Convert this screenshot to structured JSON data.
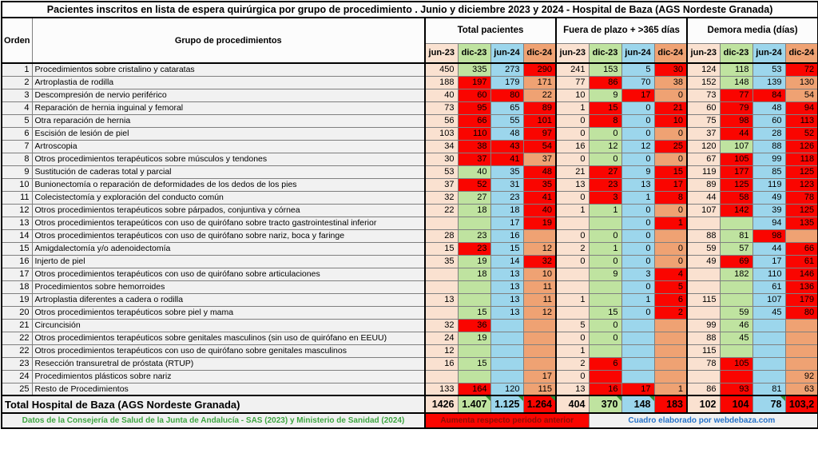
{
  "chart_data": {
    "type": "table",
    "title": "Pacientes inscritos en lista de espera quirúrgica por grupo de procedimiento . Junio y diciembre 2023 y 2024 - Hospital de Baza (AGS Nordeste Granada)",
    "columns": {
      "orden": "Orden",
      "grupo": "Grupo de procedimientos",
      "groups": [
        {
          "label": "Total pacientes",
          "periods": [
            "jun-23",
            "dic-23",
            "jun-24",
            "dic-24"
          ]
        },
        {
          "label": "Fuera de plazo + >365 días",
          "periods": [
            "jun-23",
            "dic-23",
            "jun-24",
            "dic-24"
          ]
        },
        {
          "label": "Demora media (días)",
          "periods": [
            "jun-23",
            "dic-23",
            "jun-24",
            "dic-24"
          ]
        }
      ]
    },
    "period_colors": {
      "jun-23": "#fae1d0",
      "dic-23": "#bfe3a0",
      "jun-24": "#9cd6ec",
      "dic-24": "#efa273",
      "increase": "#fa0500"
    },
    "rows": [
      {
        "orden": "1",
        "grupo": "Procedimientos sobre cristalino y cataratas",
        "values": [
          "450",
          "335",
          "273",
          "290",
          "241",
          "153",
          "5",
          "30",
          "124",
          "118",
          "53",
          "72"
        ],
        "red": [
          3,
          7,
          11
        ]
      },
      {
        "orden": "2",
        "grupo": "Artroplastia de rodilla",
        "values": [
          "188",
          "197",
          "179",
          "171",
          "77",
          "86",
          "70",
          "38",
          "152",
          "148",
          "139",
          "130"
        ],
        "red": [
          1,
          5
        ]
      },
      {
        "orden": "3",
        "grupo": "Descompresión de nervio periférico",
        "values": [
          "40",
          "60",
          "80",
          "22",
          "10",
          "9",
          "17",
          "0",
          "73",
          "77",
          "84",
          "54"
        ],
        "red": [
          1,
          2,
          6,
          9,
          10
        ]
      },
      {
        "orden": "4",
        "grupo": "Reparación de hernia inguinal y femoral",
        "values": [
          "73",
          "95",
          "65",
          "89",
          "1",
          "15",
          "0",
          "21",
          "60",
          "79",
          "48",
          "94"
        ],
        "red": [
          1,
          3,
          5,
          7,
          9,
          11
        ]
      },
      {
        "orden": "5",
        "grupo": "Otra reparación de hernia",
        "values": [
          "56",
          "66",
          "55",
          "101",
          "0",
          "8",
          "0",
          "10",
          "75",
          "98",
          "60",
          "113"
        ],
        "red": [
          1,
          3,
          5,
          7,
          9,
          11
        ]
      },
      {
        "orden": "6",
        "grupo": "Escisión de lesión de piel",
        "values": [
          "103",
          "110",
          "48",
          "97",
          "0",
          "0",
          "0",
          "0",
          "37",
          "44",
          "28",
          "52"
        ],
        "red": [
          1,
          3,
          9,
          11
        ]
      },
      {
        "orden": "7",
        "grupo": "Artroscopia",
        "values": [
          "34",
          "38",
          "43",
          "54",
          "16",
          "12",
          "12",
          "25",
          "120",
          "107",
          "88",
          "126"
        ],
        "red": [
          1,
          2,
          3,
          7,
          11
        ]
      },
      {
        "orden": "8",
        "grupo": "Otros procedimientos terapéuticos sobre músculos y tendones",
        "values": [
          "30",
          "37",
          "41",
          "37",
          "0",
          "0",
          "0",
          "0",
          "67",
          "105",
          "99",
          "118"
        ],
        "red": [
          1,
          2,
          9,
          11
        ]
      },
      {
        "orden": "9",
        "grupo": "Sustitución de caderas total y parcial",
        "values": [
          "53",
          "40",
          "35",
          "48",
          "21",
          "27",
          "9",
          "15",
          "119",
          "177",
          "85",
          "125"
        ],
        "red": [
          3,
          5,
          7,
          9,
          11
        ]
      },
      {
        "orden": "10",
        "grupo": "Bunionectomía o reparación de deformidades de los dedos de los pies",
        "values": [
          "37",
          "52",
          "31",
          "35",
          "13",
          "23",
          "13",
          "17",
          "89",
          "125",
          "119",
          "123"
        ],
        "red": [
          1,
          3,
          5,
          7,
          9,
          11
        ]
      },
      {
        "orden": "11",
        "grupo": "Colecistectomía y exploración del conducto común",
        "values": [
          "32",
          "27",
          "23",
          "41",
          "0",
          "3",
          "1",
          "8",
          "44",
          "58",
          "49",
          "78"
        ],
        "red": [
          3,
          5,
          7,
          9,
          11
        ]
      },
      {
        "orden": "12",
        "grupo": "Otros procedimientos terapéuticos sobre párpados, conjuntiva y córnea",
        "values": [
          "22",
          "18",
          "18",
          "40",
          "1",
          "1",
          "0",
          "0",
          "107",
          "142",
          "39",
          "125"
        ],
        "red": [
          3,
          9,
          11
        ]
      },
      {
        "orden": "13",
        "grupo": "Otros procedimientos terapeúticos con uso de quirófano sobre tracto gastrointestinal inferior",
        "values": [
          "",
          "",
          "17",
          "19",
          "",
          "",
          "0",
          "1",
          "",
          "",
          "94",
          "135"
        ],
        "red": [
          3,
          7,
          11
        ]
      },
      {
        "orden": "14",
        "grupo": "Otros procedimientos terapéuticos con uso de quirófano sobre nariz, boca y faringe",
        "values": [
          "28",
          "23",
          "16",
          "",
          "0",
          "0",
          "0",
          "",
          "88",
          "81",
          "98",
          ""
        ],
        "red": [
          10
        ]
      },
      {
        "orden": "15",
        "grupo": "Amigdalectomía y/o adenoidectomía",
        "values": [
          "15",
          "23",
          "15",
          "12",
          "2",
          "1",
          "0",
          "0",
          "59",
          "57",
          "44",
          "66"
        ],
        "red": [
          1,
          11
        ]
      },
      {
        "orden": "16",
        "grupo": "Injerto de piel",
        "values": [
          "35",
          "19",
          "14",
          "32",
          "0",
          "0",
          "0",
          "0",
          "49",
          "69",
          "17",
          "61"
        ],
        "red": [
          3,
          9,
          11
        ]
      },
      {
        "orden": "17",
        "grupo": "Otros procedimientos terapéuticos con uso de quirófano sobre articulaciones",
        "values": [
          "",
          "18",
          "13",
          "10",
          "",
          "9",
          "3",
          "4",
          "",
          "182",
          "110",
          "146"
        ],
        "red": [
          7,
          11
        ]
      },
      {
        "orden": "18",
        "grupo": "Procedimientos sobre hemorroides",
        "values": [
          "",
          "",
          "13",
          "11",
          "",
          "",
          "0",
          "5",
          "",
          "",
          "61",
          "136"
        ],
        "red": [
          7,
          11
        ]
      },
      {
        "orden": "19",
        "grupo": "Artroplastia diferentes a cadera o rodilla",
        "values": [
          "13",
          "",
          "13",
          "11",
          "1",
          "",
          "1",
          "6",
          "115",
          "",
          "107",
          "179"
        ],
        "red": [
          7,
          11
        ]
      },
      {
        "orden": "20",
        "grupo": "Otros procedimientos terapéuticos sobre piel y mama",
        "values": [
          "",
          "15",
          "13",
          "12",
          "",
          "15",
          "0",
          "2",
          "",
          "59",
          "45",
          "80"
        ],
        "red": [
          7,
          11
        ]
      },
      {
        "orden": "21",
        "grupo": "Circuncisión",
        "values": [
          "32",
          "36",
          "",
          "",
          "5",
          "0",
          "",
          "",
          "99",
          "46",
          "",
          ""
        ],
        "red": [
          1
        ]
      },
      {
        "orden": "22",
        "grupo": "Otros procedimientos terapéuticos sobre genitales masculinos (sin uso de quirófano en EEUU)",
        "values": [
          "24",
          "19",
          "",
          "",
          "0",
          "0",
          "",
          "",
          "88",
          "45",
          "",
          ""
        ],
        "red": []
      },
      {
        "orden": "22",
        "grupo": "Otros procedimientos terapéuticos con uso de quirófano sobre genitales masculinos",
        "values": [
          "12",
          "",
          "",
          "",
          "1",
          "",
          "",
          "",
          "115",
          "",
          "",
          ""
        ],
        "red": []
      },
      {
        "orden": "23",
        "grupo": "Resección transuretral de próstata (RTUP)",
        "values": [
          "16",
          "15",
          "",
          "",
          "2",
          "6",
          "",
          "",
          "78",
          "105",
          "",
          ""
        ],
        "red": [
          5,
          9
        ]
      },
      {
        "orden": "24",
        "grupo": "Procedimientos plásticos sobre nariz",
        "values": [
          "",
          "",
          "",
          "17",
          "0",
          "",
          "",
          "",
          "",
          "",
          "",
          "92"
        ],
        "red": [
          5,
          9
        ]
      },
      {
        "orden": "25",
        "grupo": "Resto de Procedimientos",
        "values": [
          "133",
          "164",
          "120",
          "115",
          "13",
          "16",
          "17",
          "1",
          "86",
          "93",
          "81",
          "63"
        ],
        "red": [
          1,
          5,
          6,
          9
        ]
      }
    ],
    "total": {
      "label": "Total Hospital de Baza (AGS Nordeste Granada)",
      "values": [
        "1426",
        "1.407",
        "1.125",
        "1.264",
        "404",
        "370",
        "148",
        "183",
        "102",
        "104",
        "78",
        "103,2"
      ],
      "red": [
        3,
        7,
        9,
        11
      ],
      "markers": [
        1,
        2,
        3,
        5,
        6,
        10
      ]
    }
  },
  "footer": {
    "source": "Datos de la Consejería de Salud de  la Junta de Andalucía - SAS (2023) y Ministerio de Sanidad (2024)",
    "legend": "Aumenta respecto periodo anterior",
    "credit": "Cuadro elaborado por webdebaza.com"
  }
}
